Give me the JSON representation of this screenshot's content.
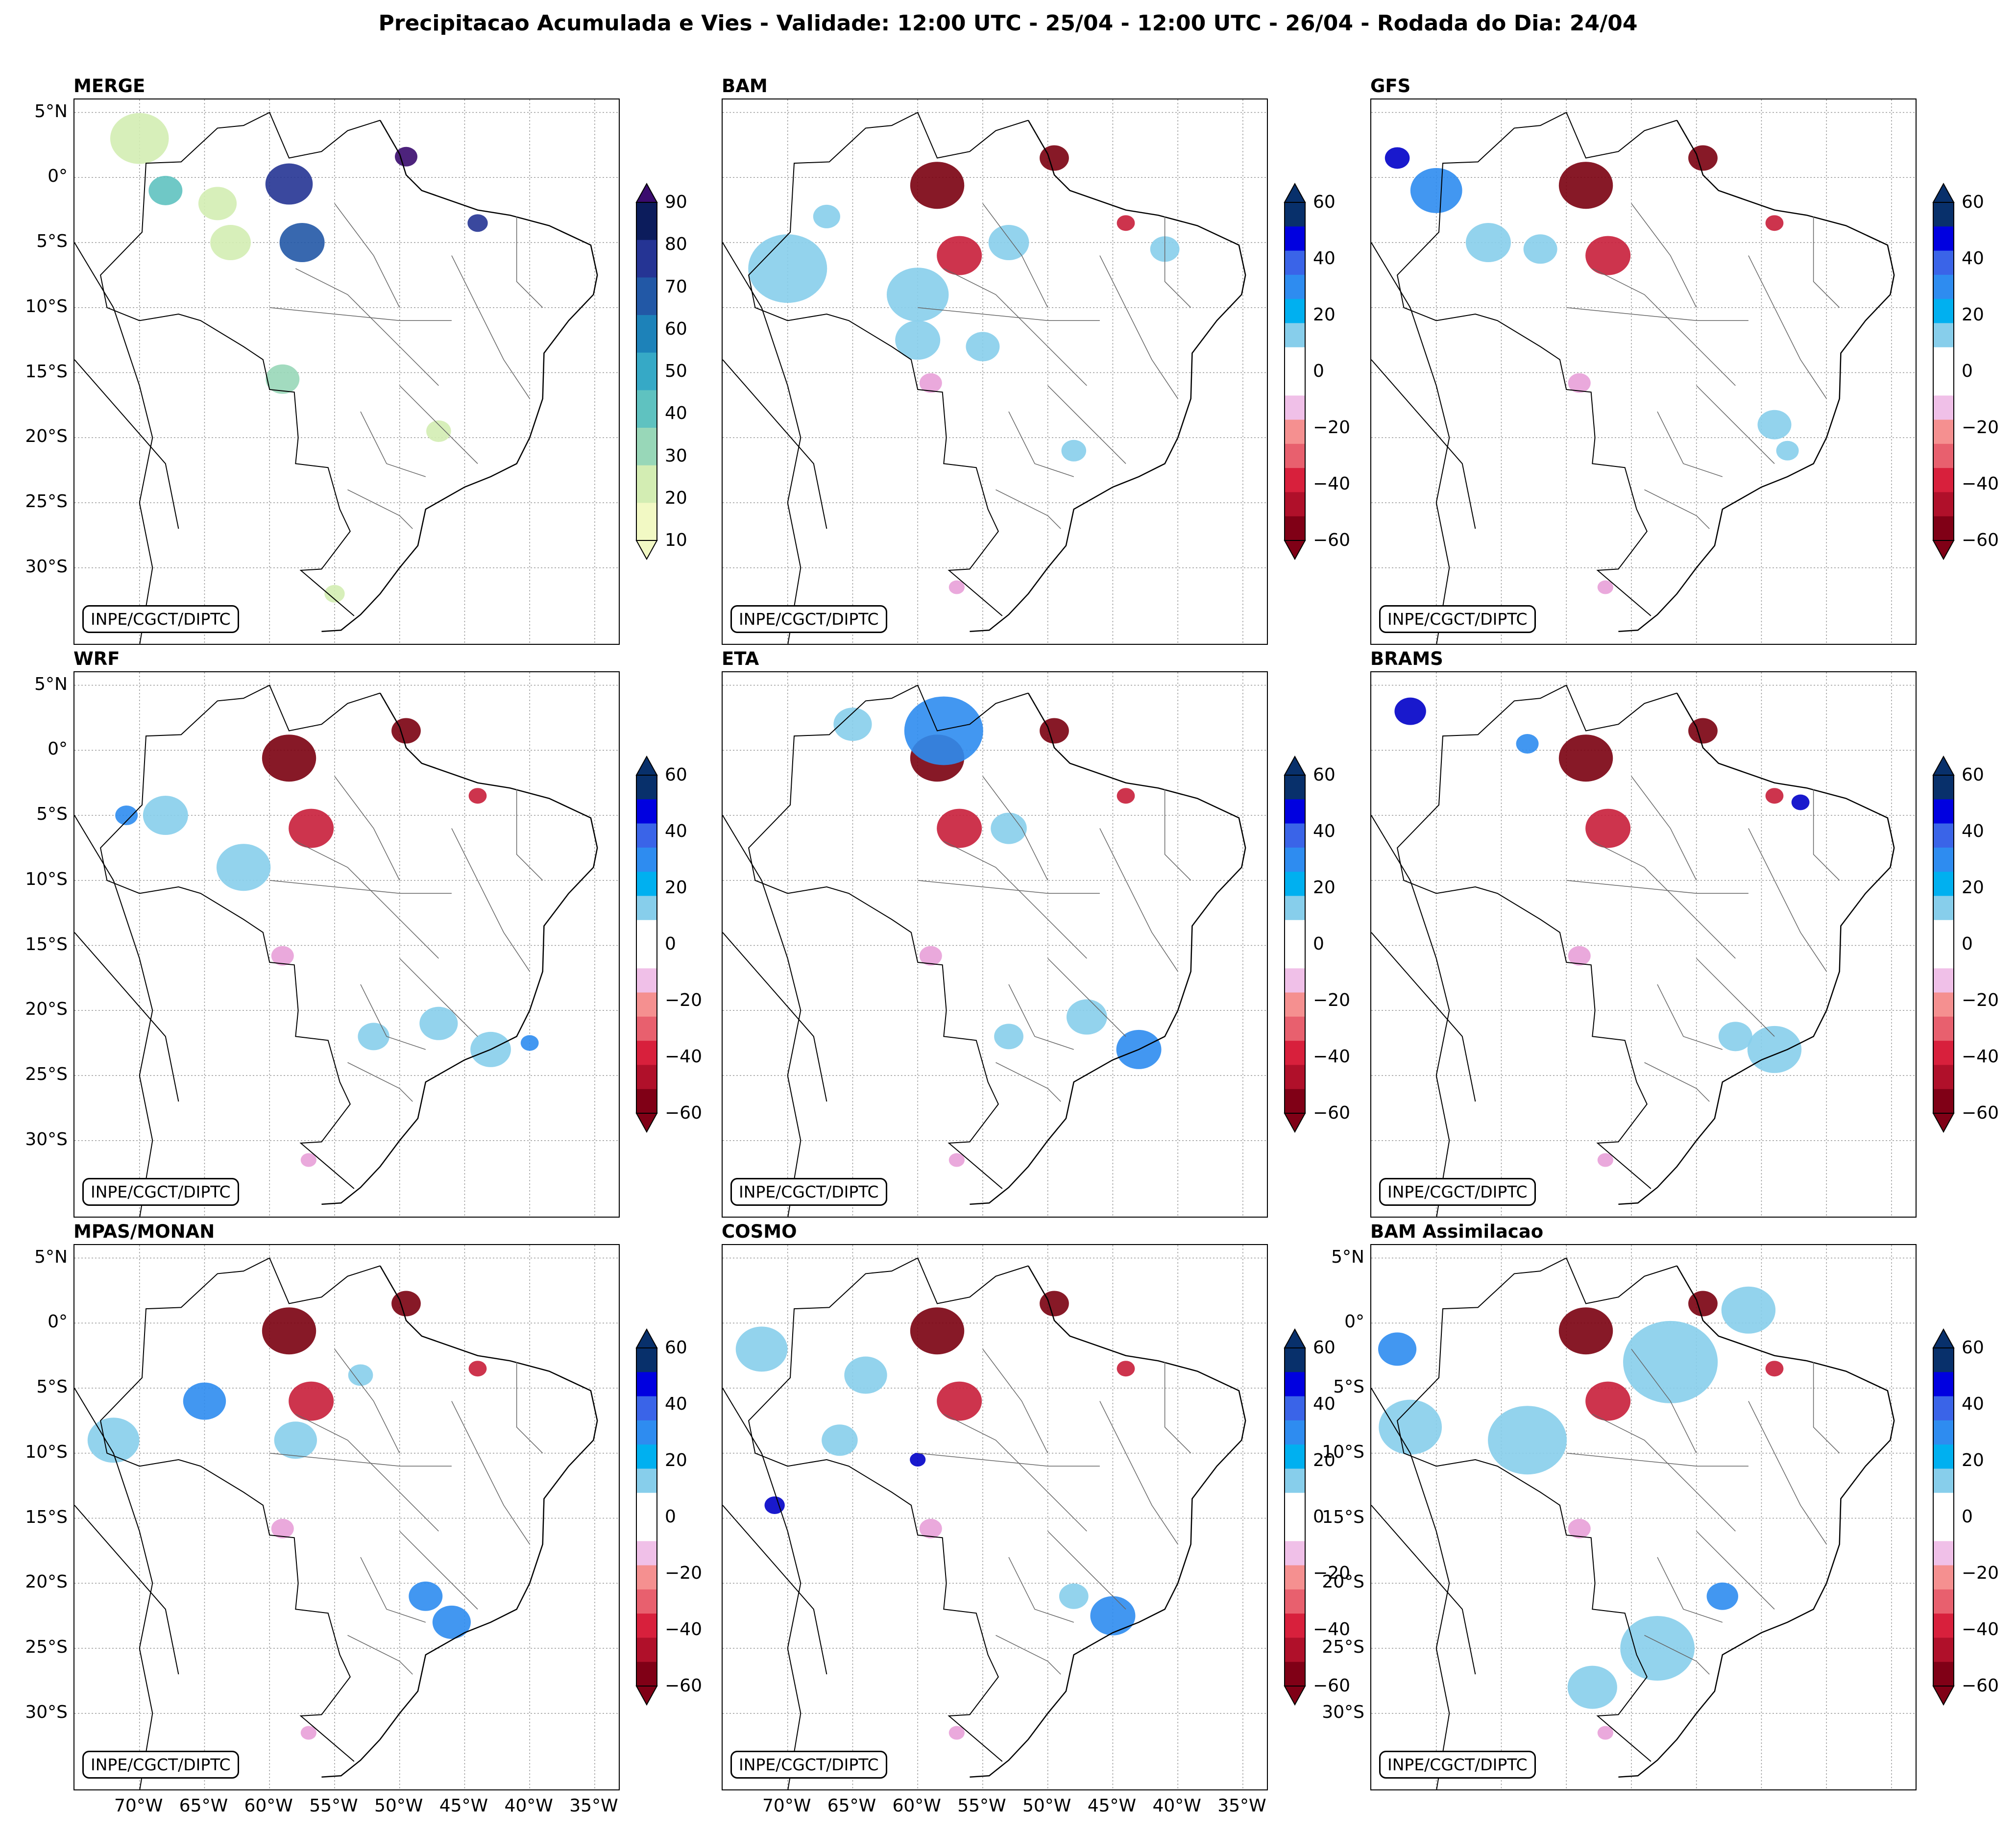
{
  "title": "Precipitacao Acumulada e Vies - Validade: 12:00 UTC - 25/04 - 12:00 UTC - 26/04 - Rodada do Dia: 24/04",
  "credit": "INPE/CGCT/DIPTC",
  "lat_labels": [
    "5°N",
    "0°",
    "5°S",
    "10°S",
    "15°S",
    "20°S",
    "25°S",
    "30°S"
  ],
  "lon_labels": [
    "70°W",
    "65°W",
    "60°W",
    "55°W",
    "50°W",
    "45°W",
    "40°W",
    "35°W"
  ],
  "precip_colorbar": {
    "ticks": [
      "90",
      "80",
      "70",
      "60",
      "50",
      "40",
      "30",
      "20",
      "10"
    ],
    "colors": [
      "#3a0b6e",
      "#0c1c5c",
      "#253494",
      "#2258a6",
      "#1d82b9",
      "#36a9c6",
      "#5fc2c0",
      "#98d7b8",
      "#d3edb3",
      "#f2f9c4"
    ]
  },
  "bias_colorbar": {
    "ticks": [
      "60",
      "40",
      "20",
      "0",
      "−20",
      "−40",
      "−60"
    ],
    "colors": [
      "#08306b",
      "#0000e0",
      "#3a64e8",
      "#2e8cf0",
      "#00b0f0",
      "#87ceeb",
      "#ffffff",
      "#ffffff",
      "#f0c0e8",
      "#f59090",
      "#e8606e",
      "#d8203c",
      "#b0102a",
      "#800016"
    ]
  },
  "panels": [
    {
      "name": "MERGE",
      "type": "precip"
    },
    {
      "name": "BAM",
      "type": "bias"
    },
    {
      "name": "GFS",
      "type": "bias"
    },
    {
      "name": "WRF",
      "type": "bias"
    },
    {
      "name": "ETA",
      "type": "bias"
    },
    {
      "name": "BRAMS",
      "type": "bias"
    },
    {
      "name": "MPAS/MONAN",
      "type": "bias"
    },
    {
      "name": "COSMO",
      "type": "bias"
    },
    {
      "name": "BAM Assimilacao",
      "type": "bias"
    }
  ]
}
